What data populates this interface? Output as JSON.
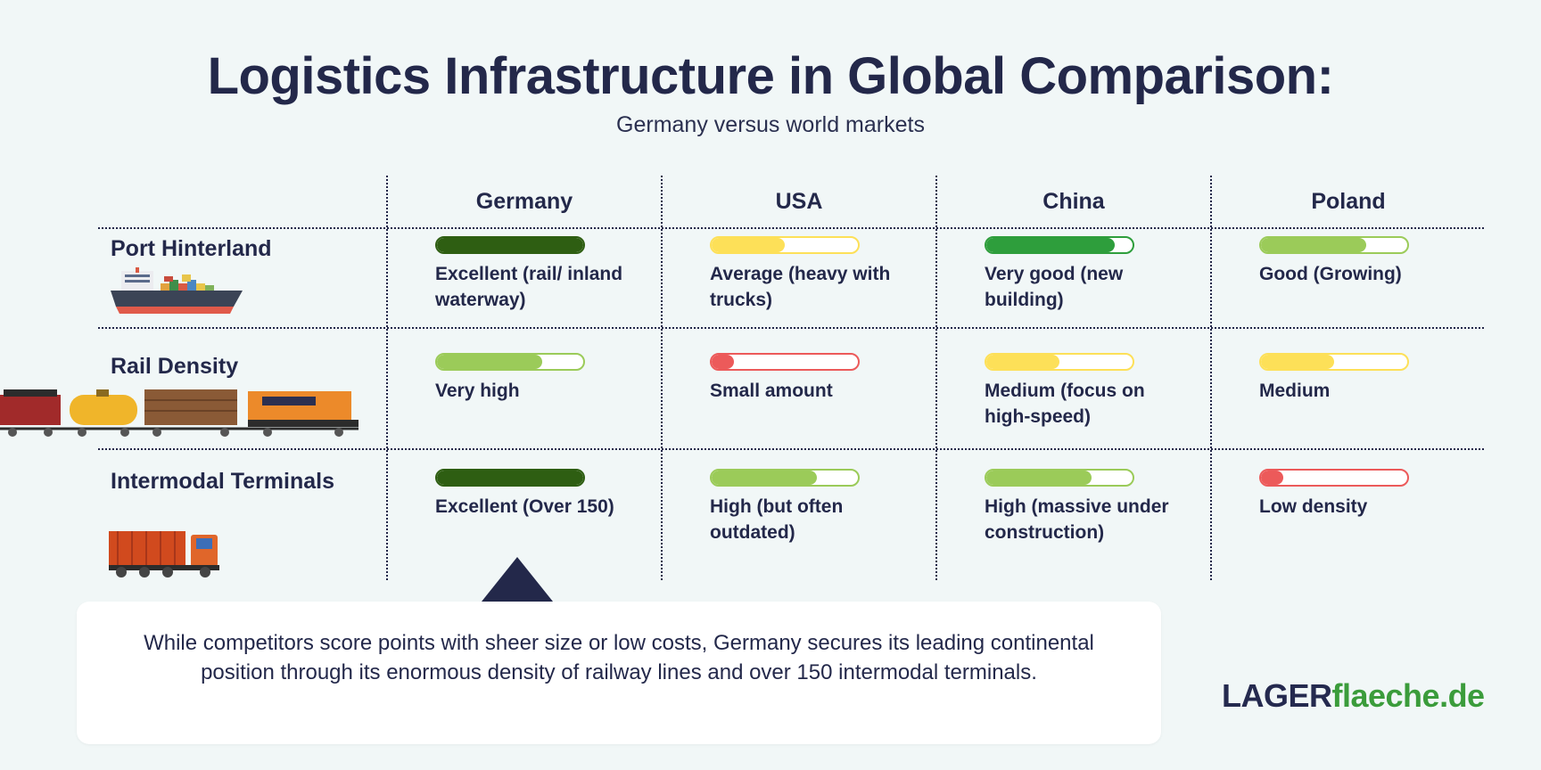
{
  "title": "Logistics Infrastructure in Global Comparison:",
  "subtitle": "Germany versus world markets",
  "columns": [
    "Germany",
    "USA",
    "China",
    "Poland"
  ],
  "rows": [
    {
      "label": "Port Hinterland",
      "illustration": "container-ship-icon",
      "cells": [
        {
          "rating": 1.0,
          "color": "#2e5e12",
          "border": "#2e5e12",
          "text": "Excellent (rail/ inland waterway)"
        },
        {
          "rating": 0.5,
          "color": "#fde058",
          "border": "#fde058",
          "text": "Average (heavy with trucks)"
        },
        {
          "rating": 0.88,
          "color": "#2e9e3c",
          "border": "#2e9e3c",
          "text": "Very good (new building)"
        },
        {
          "rating": 0.72,
          "color": "#9bcb59",
          "border": "#9bcb59",
          "text": "Good (Growing)"
        }
      ]
    },
    {
      "label": "Rail Density",
      "illustration": "freight-train-icon",
      "cells": [
        {
          "rating": 0.72,
          "color": "#9bcb59",
          "border": "#9bcb59",
          "text": "Very high"
        },
        {
          "rating": 0.15,
          "color": "#ec5a5a",
          "border": "#ec5a5a",
          "text": "Small amount"
        },
        {
          "rating": 0.5,
          "color": "#fde058",
          "border": "#fde058",
          "text": "Medium (focus on high-speed)"
        },
        {
          "rating": 0.5,
          "color": "#fde058",
          "border": "#fde058",
          "text": "Medium"
        }
      ]
    },
    {
      "label": "Intermodal Terminals",
      "illustration": "container-truck-icon",
      "cells": [
        {
          "rating": 1.0,
          "color": "#2e5e12",
          "border": "#2e5e12",
          "text": "Excellent (Over 150)"
        },
        {
          "rating": 0.72,
          "color": "#9bcb59",
          "border": "#9bcb59",
          "text": "High (but often outdated)"
        },
        {
          "rating": 0.72,
          "color": "#9bcb59",
          "border": "#9bcb59",
          "text": "High (massive under construction)"
        },
        {
          "rating": 0.15,
          "color": "#ec5a5a",
          "border": "#ec5a5a",
          "text": "Low density"
        }
      ]
    }
  ],
  "callout": "While competitors score points with sheer size or low costs, Germany secures its leading continental position through its enormous density of railway lines and over 150 intermodal terminals.",
  "logo": {
    "part1": "LAGER",
    "part2": "flaeche.de"
  }
}
